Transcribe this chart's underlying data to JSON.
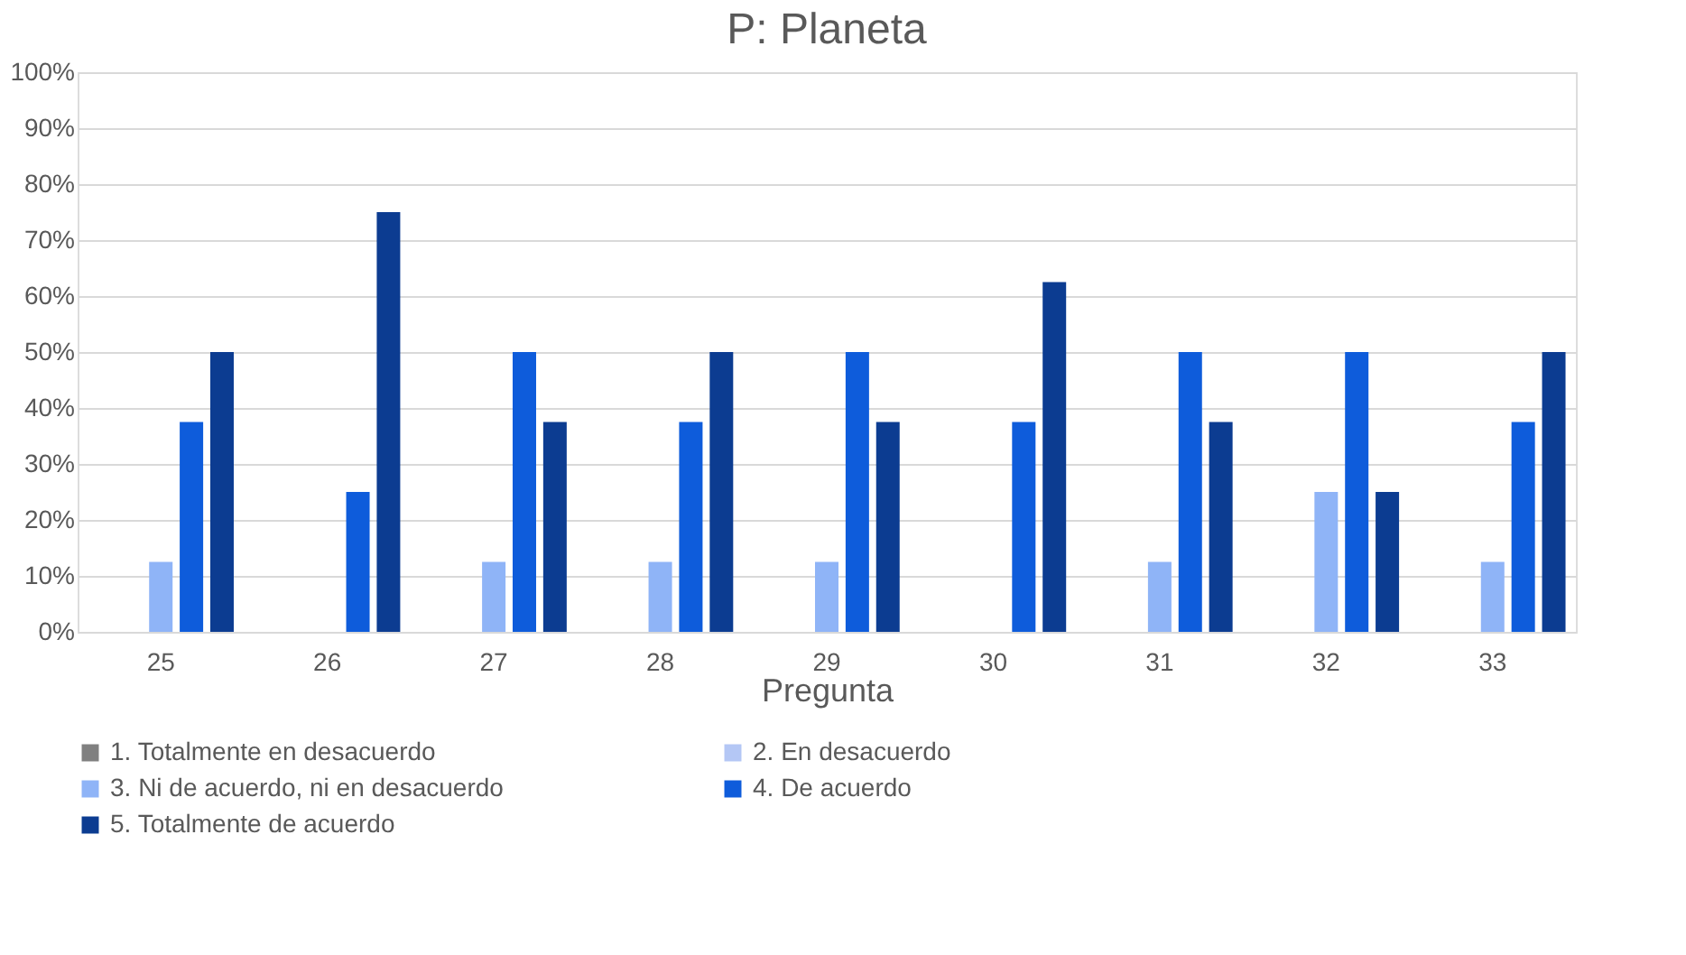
{
  "chart_data": {
    "type": "bar",
    "title": "P: Planeta",
    "xlabel": "Pregunta",
    "categories": [
      "25",
      "26",
      "27",
      "28",
      "29",
      "30",
      "31",
      "32",
      "33"
    ],
    "series": [
      {
        "name": "1. Totalmente en desacuerdo",
        "color": "#808080",
        "values": [
          0,
          0,
          0,
          0,
          0,
          0,
          0,
          0,
          0
        ]
      },
      {
        "name": "2. En desacuerdo",
        "color": "#b4c7f5",
        "values": [
          0,
          0,
          0,
          0,
          0,
          0,
          0,
          0,
          0
        ]
      },
      {
        "name": "3. Ni de acuerdo, ni en desacuerdo",
        "color": "#8fb4f7",
        "values": [
          12.5,
          0,
          12.5,
          12.5,
          12.5,
          0,
          12.5,
          25,
          12.5
        ]
      },
      {
        "name": "4. De acuerdo",
        "color": "#0e5cdb",
        "values": [
          37.5,
          25,
          50,
          37.5,
          50,
          37.5,
          50,
          50,
          37.5
        ]
      },
      {
        "name": "5. Totalmente de acuerdo",
        "color": "#0c3c91",
        "values": [
          50,
          75,
          37.5,
          50,
          37.5,
          62.5,
          37.5,
          25,
          50
        ]
      }
    ],
    "ylim": [
      0,
      100
    ],
    "yticks": [
      {
        "value": 0,
        "label": "0%"
      },
      {
        "value": 10,
        "label": "10%"
      },
      {
        "value": 20,
        "label": "20%"
      },
      {
        "value": 30,
        "label": "30%"
      },
      {
        "value": 40,
        "label": "40%"
      },
      {
        "value": 50,
        "label": "50%"
      },
      {
        "value": 60,
        "label": "60%"
      },
      {
        "value": 70,
        "label": "70%"
      },
      {
        "value": 80,
        "label": "80%"
      },
      {
        "value": 90,
        "label": "90%"
      },
      {
        "value": 100,
        "label": "100%"
      }
    ],
    "grid": "y",
    "legend": "bottom"
  }
}
